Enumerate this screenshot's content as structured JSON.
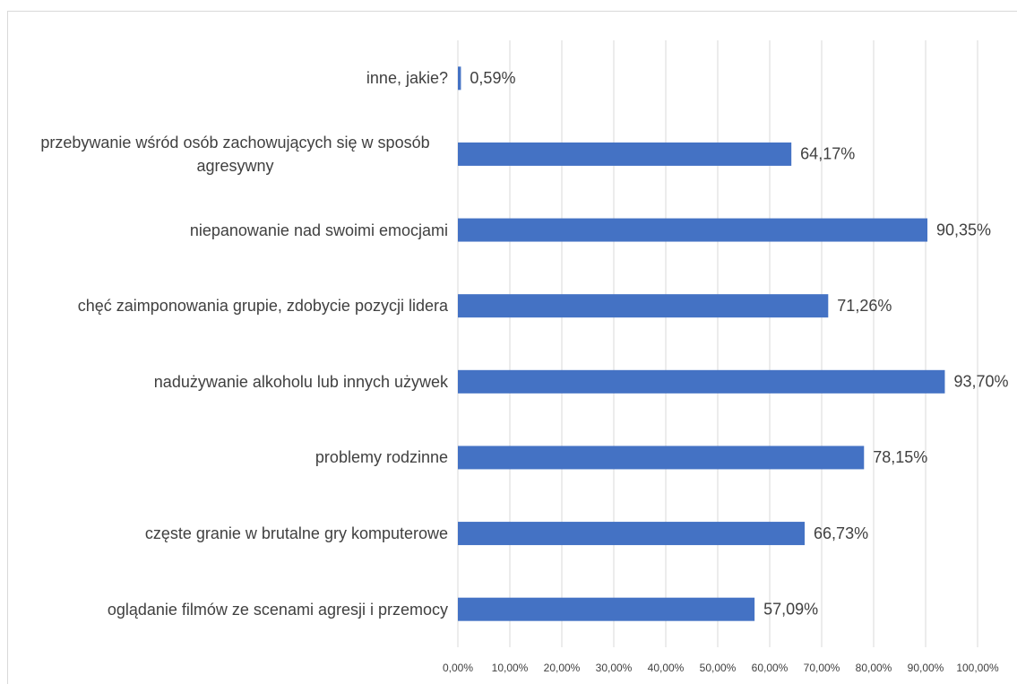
{
  "chart_data": {
    "type": "bar",
    "orientation": "horizontal",
    "categories": [
      "inne, jakie?",
      "przebywanie wśród osób zachowujących się w sposób agresywny",
      "niepanowanie nad swoimi emocjami",
      "chęć zaimponowania grupie, zdobycie pozycji lidera",
      "nadużywanie alkoholu lub innych używek",
      "problemy rodzinne",
      "częste granie w brutalne gry komputerowe",
      "oglądanie filmów ze scenami agresji i przemocy"
    ],
    "values": [
      0.59,
      64.17,
      90.35,
      71.26,
      93.7,
      78.15,
      66.73,
      57.09
    ],
    "value_labels": [
      "0,59%",
      "64,17%",
      "90,35%",
      "71,26%",
      "93,70%",
      "78,15%",
      "66,73%",
      "57,09%"
    ],
    "color": "#4472c4",
    "xlim": [
      0,
      100
    ],
    "xticks": [
      {
        "value": 0,
        "label": "0,00%"
      },
      {
        "value": 10,
        "label": "10,00%"
      },
      {
        "value": 20,
        "label": "20,00%"
      },
      {
        "value": 30,
        "label": "30,00%"
      },
      {
        "value": 40,
        "label": "40,00%"
      },
      {
        "value": 50,
        "label": "50,00%"
      },
      {
        "value": 60,
        "label": "60,00%"
      },
      {
        "value": 70,
        "label": "70,00%"
      },
      {
        "value": 80,
        "label": "80,00%"
      },
      {
        "value": 90,
        "label": "90,00%"
      },
      {
        "value": 100,
        "label": "100,00%"
      }
    ],
    "grid": true
  }
}
